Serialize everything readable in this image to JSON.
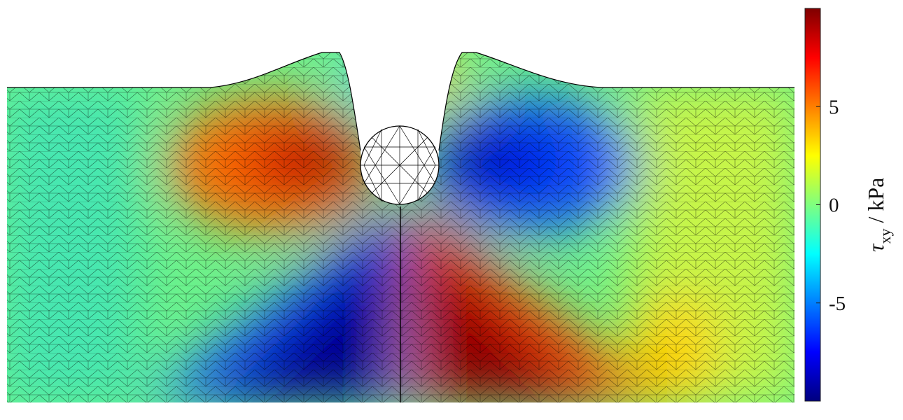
{
  "chart_data": {
    "type": "heatmap",
    "title": "",
    "colormap": "jet",
    "colorbar": {
      "label_symbol": "τ",
      "label_subscript": "xy",
      "label_unit": " / kPa",
      "ticks": [
        5,
        0,
        -5
      ],
      "tick_labels": [
        "5",
        "0",
        "-5"
      ],
      "range": [
        -10,
        10
      ]
    },
    "field": {
      "description_free": "",
      "lobes": [
        {
          "region": "upper-left",
          "value": 9
        },
        {
          "region": "upper-right",
          "value": -9
        },
        {
          "region": "lower-left",
          "value": -9.5
        },
        {
          "region": "lower-right",
          "value": 9.5
        },
        {
          "region": "left-edge",
          "value": 0
        },
        {
          "region": "right-edge",
          "value": 2
        }
      ]
    },
    "grid": true
  },
  "colors": {
    "jet": [
      "#00007f",
      "#0000ff",
      "#007fff",
      "#00ffff",
      "#7fff7f",
      "#ffff00",
      "#ff7f00",
      "#ff0000",
      "#7f0000"
    ]
  }
}
